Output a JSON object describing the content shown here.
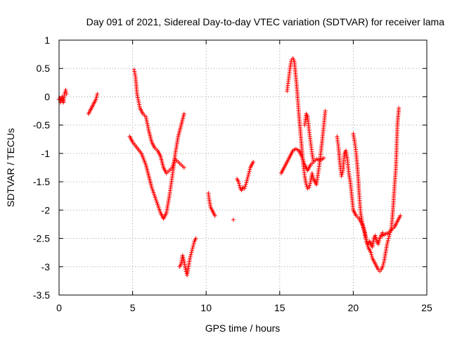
{
  "chart_data": {
    "type": "scatter",
    "title": "Day 091 of 2021, Sidereal Day-to-day VTEC variation (SDTVAR) for receiver lama",
    "xlabel": "GPS time / hours",
    "ylabel": "SDTVAR / TECUs",
    "xlim": [
      0,
      25
    ],
    "ylim": [
      -3.5,
      1
    ],
    "xticks": [
      0,
      5,
      10,
      15,
      20,
      25
    ],
    "xtick_labels": [
      "0",
      "5",
      "10",
      "15",
      "20",
      "25"
    ],
    "yticks": [
      -3.5,
      -3,
      -2.5,
      -2,
      -1.5,
      -1,
      -0.5,
      0,
      0.5,
      1
    ],
    "ytick_labels": [
      "-3.5",
      "-3",
      "-2.5",
      "-2",
      "-1.5",
      "-1",
      "-0.5",
      "0",
      "0.5",
      "1"
    ],
    "grid": true,
    "marker": "+",
    "color": "#ff0000",
    "series": [
      {
        "name": "seg-0-0.5",
        "x": [
          0.0,
          0.05,
          0.1,
          0.15,
          0.2,
          0.25,
          0.3,
          0.35,
          0.4,
          0.45,
          0.5
        ],
        "y": [
          -0.05,
          -0.02,
          -0.1,
          -0.05,
          0.0,
          -0.08,
          -0.1,
          0.02,
          0.08,
          0.12,
          0.05
        ]
      },
      {
        "name": "seg-2.0-2.6",
        "x": [
          2.0,
          2.1,
          2.2,
          2.3,
          2.4,
          2.5,
          2.6
        ],
        "y": [
          -0.3,
          -0.25,
          -0.2,
          -0.15,
          -0.1,
          -0.05,
          0.05
        ]
      },
      {
        "name": "seg-4.8-8.0-lower",
        "x": [
          4.8,
          5.0,
          5.3,
          5.6,
          5.9,
          6.1,
          6.3,
          6.5,
          6.7,
          6.9,
          7.1,
          7.3,
          7.5,
          7.7,
          7.9,
          8.1,
          8.3,
          8.5
        ],
        "y": [
          -0.7,
          -0.8,
          -0.9,
          -1.0,
          -1.2,
          -1.4,
          -1.6,
          -1.75,
          -1.9,
          -2.05,
          -2.15,
          -2.05,
          -1.75,
          -1.4,
          -1.0,
          -0.7,
          -0.5,
          -0.3
        ]
      },
      {
        "name": "seg-5.1-8.5-upper",
        "x": [
          5.1,
          5.2,
          5.3,
          5.5,
          5.7,
          5.9,
          6.1,
          6.3,
          6.5,
          6.7,
          6.9,
          7.1,
          7.3,
          7.5,
          7.7,
          7.9,
          8.1,
          8.3,
          8.5
        ],
        "y": [
          0.48,
          0.35,
          0.05,
          -0.2,
          -0.3,
          -0.35,
          -0.6,
          -0.8,
          -0.9,
          -0.95,
          -1.05,
          -1.25,
          -1.35,
          -1.3,
          -1.25,
          -1.1,
          -1.15,
          -1.2,
          -1.25
        ]
      },
      {
        "name": "seg-8.2-9.3",
        "x": [
          8.2,
          8.3,
          8.4,
          8.5,
          8.6,
          8.7,
          8.8,
          8.9,
          9.0,
          9.1,
          9.2,
          9.3
        ],
        "y": [
          -3.0,
          -2.95,
          -2.8,
          -2.9,
          -3.05,
          -3.15,
          -3.0,
          -2.85,
          -2.75,
          -2.65,
          -2.55,
          -2.5
        ]
      },
      {
        "name": "seg-10.1-10.6",
        "x": [
          10.15,
          10.2,
          10.3,
          10.4,
          10.5,
          10.6
        ],
        "y": [
          -1.7,
          -1.8,
          -1.95,
          -2.0,
          -2.05,
          -2.1
        ]
      },
      {
        "name": "seg-11.9",
        "x": [
          11.85
        ],
        "y": [
          -2.17
        ]
      },
      {
        "name": "seg-12.1-13.2",
        "x": [
          12.1,
          12.2,
          12.3,
          12.4,
          12.5,
          12.6,
          12.7,
          12.8,
          12.9,
          13.0,
          13.1,
          13.2
        ],
        "y": [
          -1.45,
          -1.5,
          -1.6,
          -1.65,
          -1.6,
          -1.62,
          -1.55,
          -1.45,
          -1.35,
          -1.25,
          -1.2,
          -1.15
        ]
      },
      {
        "name": "seg-15.1-18.0",
        "x": [
          15.1,
          15.3,
          15.5,
          15.7,
          15.9,
          16.1,
          16.3,
          16.5,
          16.7,
          16.9,
          17.1,
          17.3,
          17.5,
          17.7,
          17.9,
          18.0
        ],
        "y": [
          -1.35,
          -1.25,
          -1.15,
          -1.05,
          -0.95,
          -0.92,
          -0.95,
          -1.05,
          -1.2,
          -1.3,
          -1.2,
          -1.15,
          -1.1,
          -1.12,
          -1.1,
          -1.08
        ]
      },
      {
        "name": "seg-15.5-18.2-peaks",
        "x": [
          15.5,
          15.6,
          15.7,
          15.8,
          15.9,
          16.0,
          16.1,
          16.2,
          16.3,
          16.4,
          16.5,
          16.6,
          16.7,
          16.8,
          16.9,
          17.0,
          17.1,
          17.2,
          17.3,
          17.5,
          17.7,
          17.9,
          18.1
        ],
        "y": [
          0.1,
          0.3,
          0.5,
          0.65,
          0.68,
          0.62,
          0.35,
          0.05,
          -0.3,
          -0.6,
          -0.9,
          -1.2,
          -1.4,
          -1.55,
          -1.62,
          -1.6,
          -1.5,
          -1.35,
          -1.45,
          -1.55,
          -1.2,
          -0.75,
          -0.25
        ]
      },
      {
        "name": "seg-16.7-17.3-mid",
        "x": [
          16.7,
          16.8,
          16.9,
          17.0,
          17.1,
          17.2,
          17.3
        ],
        "y": [
          -0.5,
          -0.3,
          -0.35,
          -0.6,
          -0.8,
          -1.0,
          -1.15
        ]
      },
      {
        "name": "seg-18.9-20.0-left",
        "x": [
          18.9,
          19.0,
          19.1,
          19.2,
          19.3,
          19.4,
          19.5,
          19.6,
          19.7,
          19.8,
          19.9,
          20.0
        ],
        "y": [
          -0.7,
          -0.9,
          -1.2,
          -1.4,
          -1.3,
          -1.0,
          -0.95,
          -1.1,
          -1.35,
          -1.5,
          -1.75,
          -2.0
        ]
      },
      {
        "name": "seg-20.0-22.0-upper",
        "x": [
          20.0,
          20.1,
          20.2,
          20.3,
          20.4,
          20.5,
          20.6,
          20.7,
          20.8,
          20.9,
          21.0,
          21.1,
          21.2,
          21.3,
          21.4,
          21.5,
          21.6,
          21.7,
          21.8,
          21.9,
          22.0
        ],
        "y": [
          -0.65,
          -0.8,
          -1.0,
          -1.3,
          -1.7,
          -2.05,
          -2.2,
          -2.3,
          -2.45,
          -2.55,
          -2.6,
          -2.55,
          -2.6,
          -2.65,
          -2.5,
          -2.45,
          -2.55,
          -2.6,
          -2.5,
          -2.45,
          -2.4
        ]
      },
      {
        "name": "seg-20.0-22.5-lower",
        "x": [
          20.0,
          20.2,
          20.4,
          20.6,
          20.8,
          20.9,
          21.0,
          21.1,
          21.2,
          21.3,
          21.4,
          21.5,
          21.6,
          21.7,
          21.8,
          21.9,
          22.0,
          22.1,
          22.2,
          22.3,
          22.4,
          22.5
        ],
        "y": [
          -2.0,
          -2.1,
          -2.15,
          -2.25,
          -2.4,
          -2.55,
          -2.65,
          -2.7,
          -2.75,
          -2.85,
          -2.9,
          -2.95,
          -3.0,
          -3.05,
          -3.08,
          -3.05,
          -3.0,
          -2.9,
          -2.75,
          -2.6,
          -2.5,
          -2.4
        ]
      },
      {
        "name": "seg-22.5-23.1",
        "x": [
          22.5,
          22.6,
          22.7,
          22.8,
          22.9,
          23.0,
          23.1
        ],
        "y": [
          -2.4,
          -2.3,
          -2.0,
          -1.6,
          -1.25,
          -0.5,
          -0.2
        ]
      },
      {
        "name": "seg-22.0-23.2-band",
        "x": [
          22.0,
          22.2,
          22.4,
          22.6,
          22.8,
          23.0,
          23.2
        ],
        "y": [
          -2.45,
          -2.42,
          -2.4,
          -2.35,
          -2.3,
          -2.2,
          -2.1
        ]
      }
    ]
  }
}
